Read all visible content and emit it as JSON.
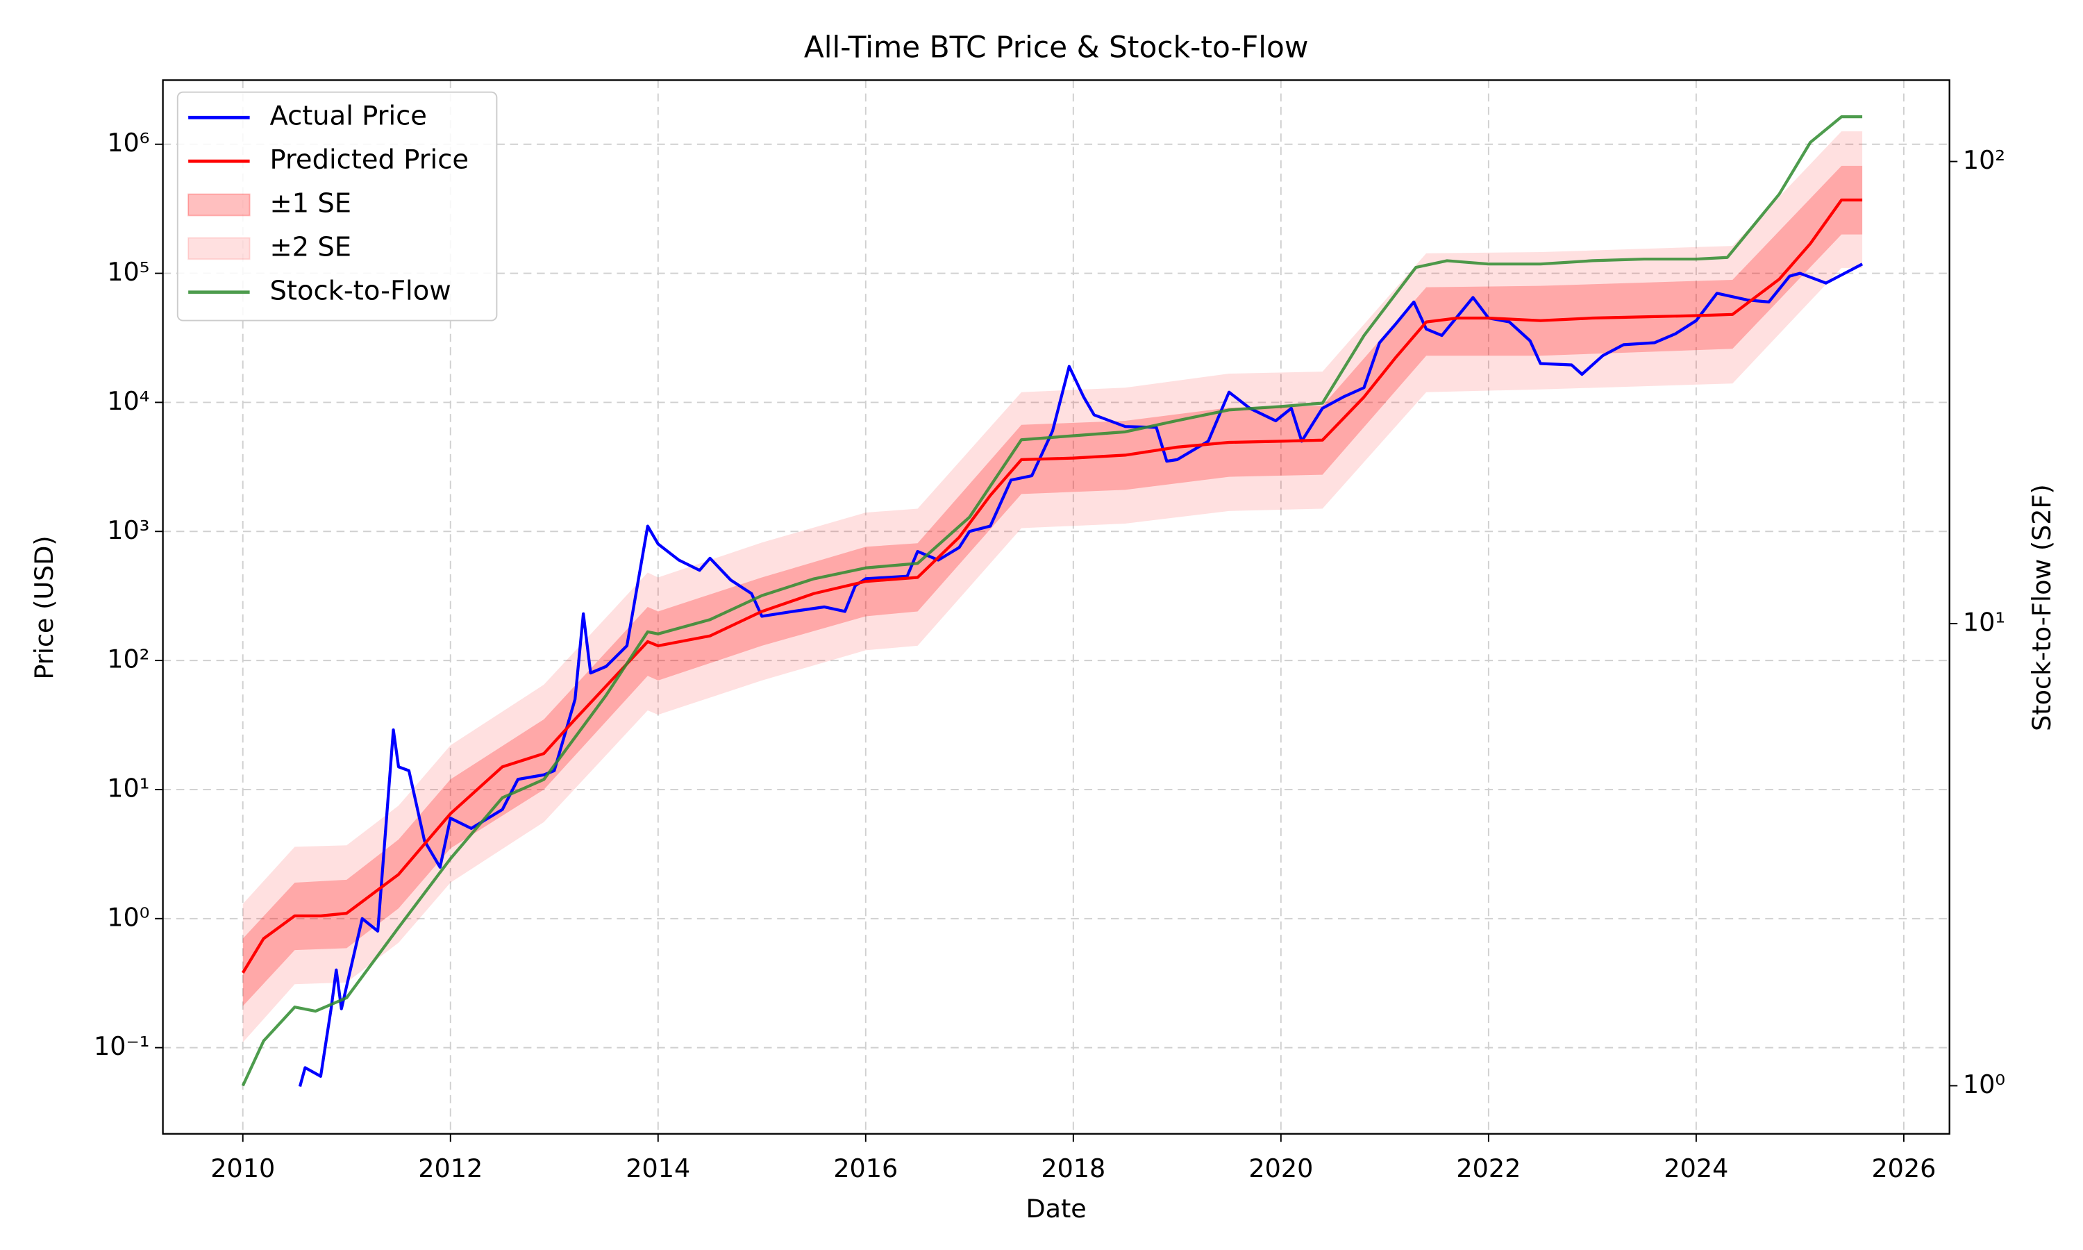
{
  "chart_data": {
    "type": "line",
    "title": "All-Time BTC Price & Stock-to-Flow",
    "x_label": "Date",
    "y_label": "Price (USD)",
    "y_label_color": "#0000ff",
    "y2_label": "Stock-to-Flow (S2F)",
    "y2_label_color": "#008000",
    "log_y": true,
    "log_y2": true,
    "grid": true,
    "legend": "upper-left",
    "xlim": [
      2009.23,
      2026.44
    ],
    "xticks": [
      2010,
      2012,
      2014,
      2016,
      2018,
      2020,
      2022,
      2024,
      2026
    ],
    "ylim": [
      0.0215,
      3140000
    ],
    "yticks": [
      {
        "value": 0.1,
        "label": "10⁻¹"
      },
      {
        "value": 1,
        "label": "10⁰"
      },
      {
        "value": 10,
        "label": "10¹"
      },
      {
        "value": 100,
        "label": "10²"
      },
      {
        "value": 1000,
        "label": "10³"
      },
      {
        "value": 10000,
        "label": "10⁴"
      },
      {
        "value": 100000,
        "label": "10⁵"
      },
      {
        "value": 1000000,
        "label": "10⁶"
      }
    ],
    "y2lim": [
      0.787,
      150
    ],
    "y2ticks": [
      {
        "value": 1,
        "label": "10⁰"
      },
      {
        "value": 10,
        "label": "10¹"
      },
      {
        "value": 100,
        "label": "10²"
      }
    ],
    "series": [
      {
        "name": "±2 SE",
        "kind": "band",
        "color": "#ff0000",
        "opacity": 0.12,
        "x": [
          2010.0,
          2010.5,
          2011.0,
          2011.5,
          2012.0,
          2012.9,
          2013.9,
          2014.0,
          2015.0,
          2016.0,
          2016.5,
          2017.5,
          2018.5,
          2019.5,
          2020.4,
          2021.4,
          2022.5,
          2024.35,
          2025.4,
          2025.6
        ],
        "lower": [
          0.11,
          0.31,
          0.32,
          0.65,
          1.9,
          5.6,
          41,
          38,
          70,
          120,
          130,
          1060,
          1150,
          1440,
          1500,
          12000,
          12600,
          14000,
          110000,
          110000
        ],
        "upper": [
          1.3,
          3.6,
          3.7,
          7.5,
          22,
          65,
          480,
          440,
          820,
          1400,
          1500,
          12000,
          13000,
          16700,
          17300,
          143000,
          146000,
          163000,
          1260000,
          1260000
        ]
      },
      {
        "name": "±1 SE",
        "kind": "band",
        "color": "#ff0000",
        "opacity": 0.25,
        "x": [
          2010.0,
          2010.5,
          2011.0,
          2011.5,
          2012.0,
          2012.9,
          2013.9,
          2014.0,
          2015.0,
          2016.0,
          2016.5,
          2017.5,
          2018.5,
          2019.5,
          2020.4,
          2021.4,
          2022.5,
          2024.35,
          2025.4,
          2025.6
        ],
        "lower": [
          0.21,
          0.57,
          0.59,
          1.2,
          3.5,
          10,
          76,
          70,
          130,
          220,
          240,
          1950,
          2100,
          2650,
          2750,
          23000,
          23000,
          26000,
          200000,
          200000
        ],
        "upper": [
          0.7,
          1.9,
          2.0,
          4.1,
          12,
          35,
          260,
          240,
          440,
          760,
          810,
          6700,
          7200,
          9100,
          9400,
          78000,
          80000,
          89000,
          680000,
          680000
        ]
      },
      {
        "name": "Actual Price",
        "kind": "line",
        "color": "#0000ff",
        "opacity": 1,
        "x": [
          2010.55,
          2010.6,
          2010.75,
          2010.85,
          2010.9,
          2010.95,
          2011.0,
          2011.15,
          2011.3,
          2011.45,
          2011.5,
          2011.6,
          2011.75,
          2011.9,
          2012.0,
          2012.2,
          2012.5,
          2012.65,
          2012.9,
          2013.0,
          2013.2,
          2013.28,
          2013.35,
          2013.5,
          2013.7,
          2013.9,
          2014.0,
          2014.2,
          2014.4,
          2014.5,
          2014.7,
          2014.9,
          2015.0,
          2015.3,
          2015.6,
          2015.8,
          2015.9,
          2016.0,
          2016.4,
          2016.5,
          2016.7,
          2016.9,
          2017.0,
          2017.2,
          2017.4,
          2017.6,
          2017.8,
          2017.96,
          2018.1,
          2018.2,
          2018.5,
          2018.8,
          2018.9,
          2019.0,
          2019.3,
          2019.5,
          2019.7,
          2019.95,
          2020.1,
          2020.2,
          2020.4,
          2020.6,
          2020.8,
          2020.95,
          2021.1,
          2021.28,
          2021.4,
          2021.55,
          2021.85,
          2022.0,
          2022.2,
          2022.4,
          2022.5,
          2022.8,
          2022.9,
          2023.1,
          2023.3,
          2023.6,
          2023.8,
          2024.0,
          2024.2,
          2024.5,
          2024.7,
          2024.9,
          2025.0,
          2025.25,
          2025.5,
          2025.6
        ],
        "values": [
          0.05,
          0.07,
          0.06,
          0.2,
          0.4,
          0.2,
          0.3,
          1.0,
          0.8,
          29,
          15,
          14,
          4,
          2.5,
          6,
          5,
          7,
          12,
          13,
          14,
          50,
          230,
          80,
          90,
          130,
          1100,
          800,
          600,
          500,
          620,
          420,
          330,
          220,
          240,
          260,
          240,
          380,
          430,
          450,
          700,
          600,
          750,
          1000,
          1100,
          2500,
          2700,
          6000,
          19000,
          11000,
          8000,
          6500,
          6400,
          3500,
          3600,
          5000,
          12000,
          9000,
          7200,
          9000,
          5000,
          9000,
          11000,
          13000,
          29000,
          40000,
          60000,
          37000,
          33000,
          65000,
          45000,
          42000,
          30000,
          20000,
          19500,
          16500,
          23000,
          28000,
          29000,
          34000,
          43000,
          70000,
          62000,
          60000,
          95000,
          100000,
          84000,
          107000,
          118000
        ]
      },
      {
        "name": "Predicted Price",
        "kind": "line",
        "color": "#ff0000",
        "opacity": 1,
        "x": [
          2010.0,
          2010.2,
          2010.5,
          2010.75,
          2011.0,
          2011.5,
          2012.0,
          2012.5,
          2012.9,
          2013.2,
          2013.9,
          2014.0,
          2014.5,
          2015.0,
          2015.5,
          2016.0,
          2016.5,
          2016.9,
          2017.2,
          2017.5,
          2018.0,
          2018.5,
          2019.0,
          2019.5,
          2020.0,
          2020.4,
          2020.8,
          2021.1,
          2021.4,
          2021.7,
          2022.0,
          2022.5,
          2023.0,
          2023.5,
          2024.0,
          2024.35,
          2024.8,
          2025.1,
          2025.4,
          2025.6
        ],
        "values": [
          0.38,
          0.7,
          1.05,
          1.05,
          1.1,
          2.2,
          6.5,
          15,
          19,
          35,
          140,
          130,
          155,
          240,
          330,
          410,
          440,
          900,
          1900,
          3600,
          3700,
          3900,
          4500,
          4900,
          5000,
          5100,
          11000,
          22000,
          42000,
          45000,
          45000,
          43000,
          45000,
          46000,
          47000,
          48000,
          90000,
          170000,
          370000,
          370000
        ]
      },
      {
        "name": "Stock-to-Flow",
        "kind": "line",
        "color": "#2e8b2e",
        "opacity": 0.85,
        "axis": "y2",
        "x": [
          2010.0,
          2010.2,
          2010.5,
          2010.7,
          2011.0,
          2011.5,
          2012.0,
          2012.5,
          2012.9,
          2013.5,
          2013.9,
          2014.0,
          2014.5,
          2015.0,
          2015.5,
          2016.0,
          2016.5,
          2017.0,
          2017.5,
          2018.0,
          2018.5,
          2019.0,
          2019.5,
          2020.0,
          2020.4,
          2020.8,
          2021.3,
          2021.6,
          2022.0,
          2022.5,
          2023.0,
          2023.5,
          2024.0,
          2024.3,
          2024.8,
          2025.1,
          2025.4,
          2025.6
        ],
        "values": [
          1.0,
          1.25,
          1.48,
          1.45,
          1.55,
          2.2,
          3.1,
          4.2,
          4.6,
          7.0,
          9.6,
          9.5,
          10.2,
          11.5,
          12.5,
          13.2,
          13.5,
          17,
          25,
          25.5,
          26,
          27.5,
          29,
          29.5,
          30,
          42,
          59,
          61,
          60,
          60,
          61,
          61.5,
          61.5,
          62,
          85,
          110,
          125,
          125
        ]
      }
    ]
  }
}
